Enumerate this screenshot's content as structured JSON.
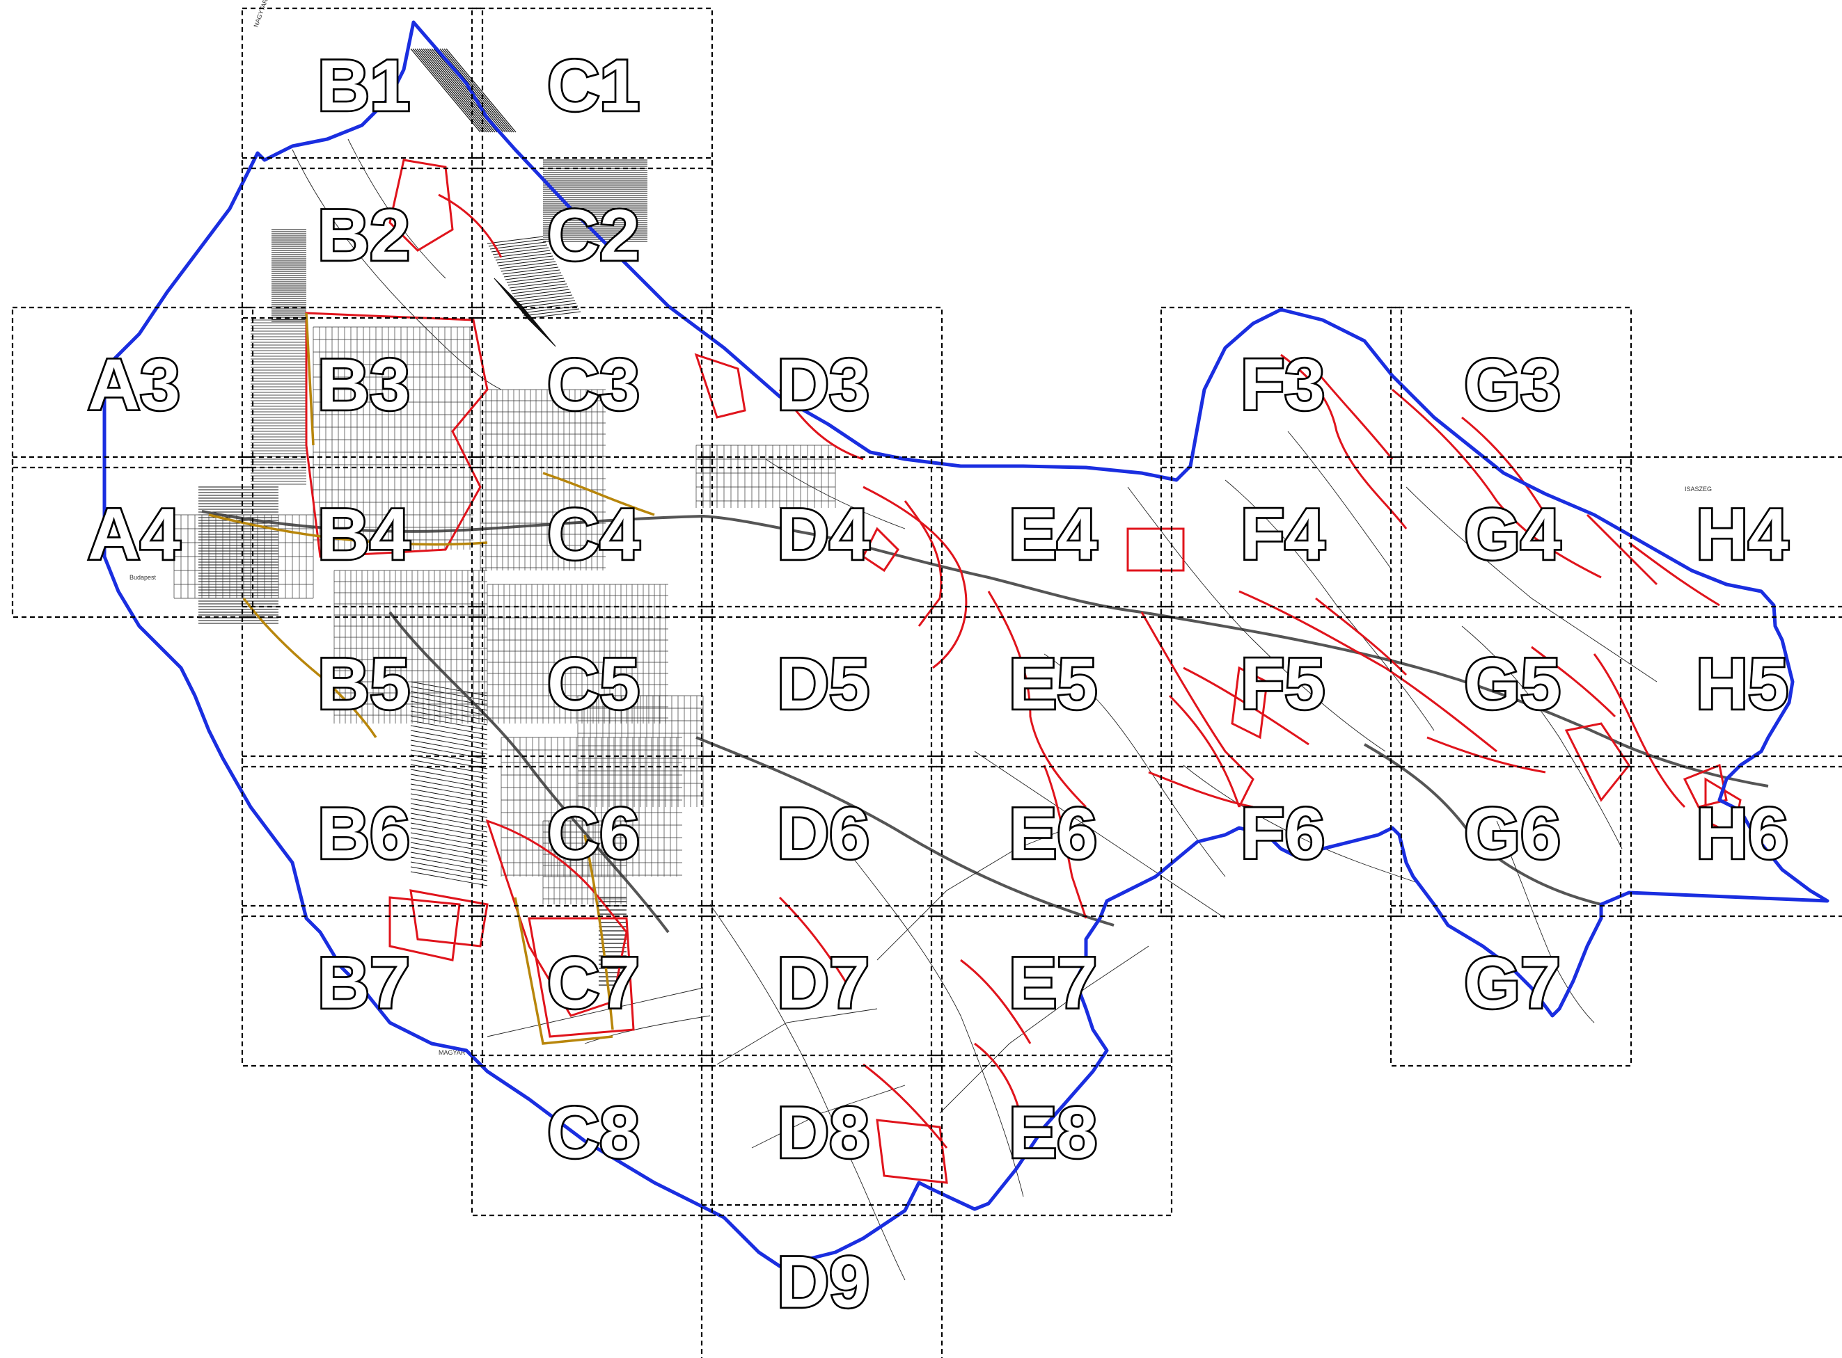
{
  "tiles": [
    {
      "id": "B1",
      "col": 1,
      "row": 0
    },
    {
      "id": "C1",
      "col": 2,
      "row": 0
    },
    {
      "id": "B2",
      "col": 1,
      "row": 1
    },
    {
      "id": "C2",
      "col": 2,
      "row": 1
    },
    {
      "id": "A3",
      "col": 0,
      "row": 2
    },
    {
      "id": "B3",
      "col": 1,
      "row": 2
    },
    {
      "id": "C3",
      "col": 2,
      "row": 2
    },
    {
      "id": "D3",
      "col": 3,
      "row": 2
    },
    {
      "id": "F3",
      "col": 5,
      "row": 2
    },
    {
      "id": "G3",
      "col": 6,
      "row": 2
    },
    {
      "id": "A4",
      "col": 0,
      "row": 3
    },
    {
      "id": "B4",
      "col": 1,
      "row": 3
    },
    {
      "id": "C4",
      "col": 2,
      "row": 3
    },
    {
      "id": "D4",
      "col": 3,
      "row": 3
    },
    {
      "id": "E4",
      "col": 4,
      "row": 3
    },
    {
      "id": "F4",
      "col": 5,
      "row": 3
    },
    {
      "id": "G4",
      "col": 6,
      "row": 3
    },
    {
      "id": "H4",
      "col": 7,
      "row": 3
    },
    {
      "id": "B5",
      "col": 1,
      "row": 4
    },
    {
      "id": "C5",
      "col": 2,
      "row": 4
    },
    {
      "id": "D5",
      "col": 3,
      "row": 4
    },
    {
      "id": "E5",
      "col": 4,
      "row": 4
    },
    {
      "id": "F5",
      "col": 5,
      "row": 4
    },
    {
      "id": "G5",
      "col": 6,
      "row": 4
    },
    {
      "id": "H5",
      "col": 7,
      "row": 4
    },
    {
      "id": "B6",
      "col": 1,
      "row": 5
    },
    {
      "id": "C6",
      "col": 2,
      "row": 5
    },
    {
      "id": "D6",
      "col": 3,
      "row": 5
    },
    {
      "id": "E6",
      "col": 4,
      "row": 5
    },
    {
      "id": "F6",
      "col": 5,
      "row": 5
    },
    {
      "id": "G6",
      "col": 6,
      "row": 5
    },
    {
      "id": "H6",
      "col": 7,
      "row": 5
    },
    {
      "id": "B7",
      "col": 1,
      "row": 6
    },
    {
      "id": "C7",
      "col": 2,
      "row": 6
    },
    {
      "id": "D7",
      "col": 3,
      "row": 6
    },
    {
      "id": "E7",
      "col": 4,
      "row": 6
    },
    {
      "id": "G7",
      "col": 6,
      "row": 6
    },
    {
      "id": "C8",
      "col": 2,
      "row": 7
    },
    {
      "id": "D8",
      "col": 3,
      "row": 7
    },
    {
      "id": "E8",
      "col": 4,
      "row": 7
    },
    {
      "id": "D9",
      "col": 3,
      "row": 8
    }
  ],
  "colors": {
    "boundary": "#1a2ee0",
    "zone": "#e0141c",
    "road_accent": "#b8860b",
    "grid": "#000000"
  },
  "place_labels": {
    "west": "Budapest",
    "south": "MAGYAR",
    "north": "NAGYTARCSA",
    "east": "ISASZEG"
  }
}
